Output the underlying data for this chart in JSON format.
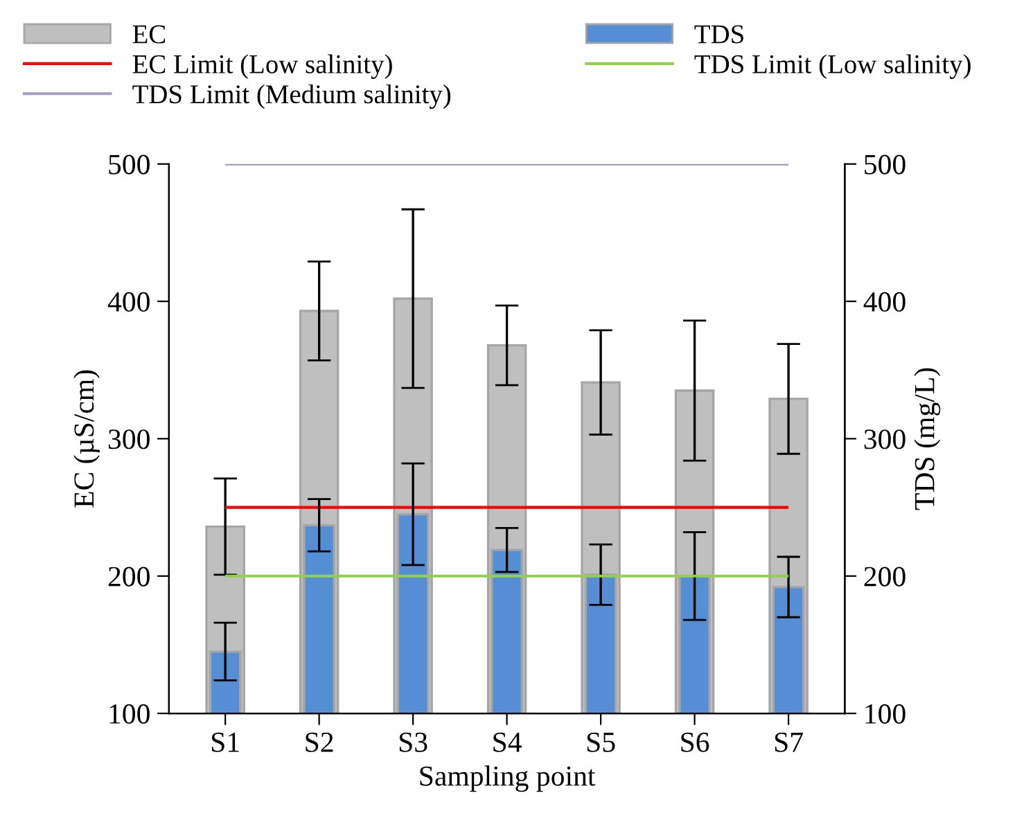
{
  "chart_data": {
    "type": "bar",
    "xlabel": "Sampling point",
    "ylabel": "EC (µS/cm)",
    "y2label": "TDS (mg/L)",
    "categories": [
      "S1",
      "S2",
      "S3",
      "S4",
      "S5",
      "S6",
      "S7"
    ],
    "series": [
      {
        "name": "EC",
        "color": "#bfbfbf",
        "values": [
          236,
          393,
          402,
          368,
          341,
          335,
          329
        ],
        "errors": [
          35,
          36,
          65,
          29,
          38,
          51,
          40
        ]
      },
      {
        "name": "TDS",
        "color": "#558ed5",
        "axis": "y2",
        "values": [
          145,
          237,
          245,
          219,
          201,
          200,
          192
        ],
        "errors": [
          21,
          19,
          37,
          16,
          22,
          32,
          22
        ]
      }
    ],
    "ref_lines": [
      {
        "axis": "y",
        "value": 250,
        "label": "EC Limit (Low salinity)",
        "color": "#ff0000"
      },
      {
        "axis": "y2",
        "value": 200,
        "label": "TDS Limit (Low salinity)",
        "color": "#92d050"
      },
      {
        "axis": "y2",
        "value": 500,
        "label": "TDS Limit (Medium salinity)",
        "color": "#a89cc8"
      }
    ],
    "ylim": [
      100,
      500
    ],
    "yticks": [
      100,
      200,
      300,
      400,
      500
    ],
    "y2lim": [
      100,
      500
    ],
    "y2ticks": [
      100,
      200,
      300,
      400,
      500
    ],
    "grid": false,
    "legend": "top"
  }
}
